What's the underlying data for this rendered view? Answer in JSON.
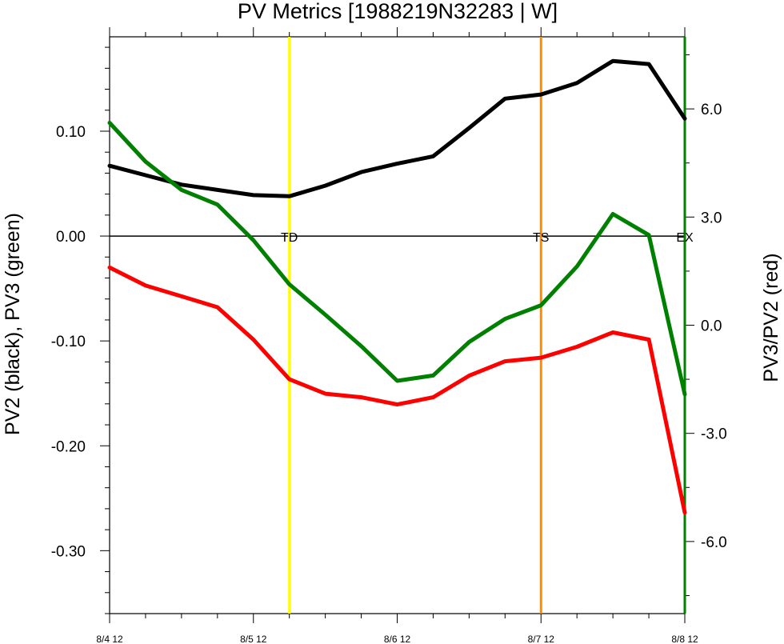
{
  "chart_data": {
    "type": "line",
    "title": "PV Metrics [1988219N32283 | W]",
    "ylabel_left": "PV2 (black), PV3 (green)",
    "ylabel_right": "PV3/PV2 (red)",
    "xlim": [
      0,
      16
    ],
    "ylim_left": [
      -0.36,
      0.19
    ],
    "ylim_right": [
      -8.0,
      8.0
    ],
    "x_ticks": [
      {
        "x": 0,
        "label": "8/4 12"
      },
      {
        "x": 4,
        "label": "8/5 12"
      },
      {
        "x": 8,
        "label": "8/6 12"
      },
      {
        "x": 12,
        "label": "8/7 12"
      },
      {
        "x": 16,
        "label": "8/8 12"
      }
    ],
    "y_ticks_left": [
      {
        "y": 0.1,
        "label": "0.10"
      },
      {
        "y": 0.0,
        "label": "0.00"
      },
      {
        "y": -0.1,
        "label": "-0.10"
      },
      {
        "y": -0.2,
        "label": "-0.20"
      },
      {
        "y": -0.3,
        "label": "-0.30"
      }
    ],
    "y_ticks_right": [
      {
        "y": 6.0,
        "label": "6.0"
      },
      {
        "y": 3.0,
        "label": "3.0"
      },
      {
        "y": 0.0,
        "label": "0.0"
      },
      {
        "y": -3.0,
        "label": "-3.0"
      },
      {
        "y": -6.0,
        "label": "-6.0"
      }
    ],
    "zero_line": 0,
    "stage_markers": [
      {
        "x": 5,
        "label": "TD",
        "color": "#ffff00"
      },
      {
        "x": 12,
        "label": "TS",
        "color": "#ff8c00"
      },
      {
        "x": 16,
        "label": "EX",
        "color": "#008000"
      }
    ],
    "series": [
      {
        "key": "pv2",
        "axis": "left",
        "color": "#000000",
        "x": [
          0,
          1,
          2,
          3,
          4,
          5,
          6,
          7,
          8,
          9,
          10,
          11,
          12,
          13,
          14,
          15,
          16
        ],
        "y": [
          0.067,
          0.058,
          0.049,
          0.044,
          0.039,
          0.038,
          0.048,
          0.061,
          0.069,
          0.076,
          0.103,
          0.131,
          0.135,
          0.146,
          0.167,
          0.164,
          0.112
        ]
      },
      {
        "key": "pv3",
        "axis": "left",
        "color": "#008000",
        "x": [
          0,
          1,
          2,
          3,
          4,
          5,
          6,
          7,
          8,
          9,
          10,
          11,
          12,
          13,
          14,
          15,
          16
        ],
        "y": [
          0.108,
          0.071,
          0.044,
          0.03,
          -0.004,
          -0.046,
          -0.075,
          -0.105,
          -0.138,
          -0.133,
          -0.101,
          -0.079,
          -0.066,
          -0.029,
          0.021,
          0.001,
          -0.151
        ]
      },
      {
        "key": "ratio",
        "axis": "right",
        "color": "#ff0000",
        "x": [
          0,
          1,
          2,
          3,
          4,
          5,
          6,
          7,
          8,
          9,
          10,
          11,
          12,
          13,
          14,
          15,
          16
        ],
        "y": [
          1.6,
          1.1,
          0.8,
          0.5,
          -0.4,
          -1.5,
          -1.9,
          -2.0,
          -2.2,
          -2.0,
          -1.4,
          -1.0,
          -0.9,
          -0.6,
          -0.2,
          -0.4,
          -5.2
        ]
      }
    ]
  }
}
